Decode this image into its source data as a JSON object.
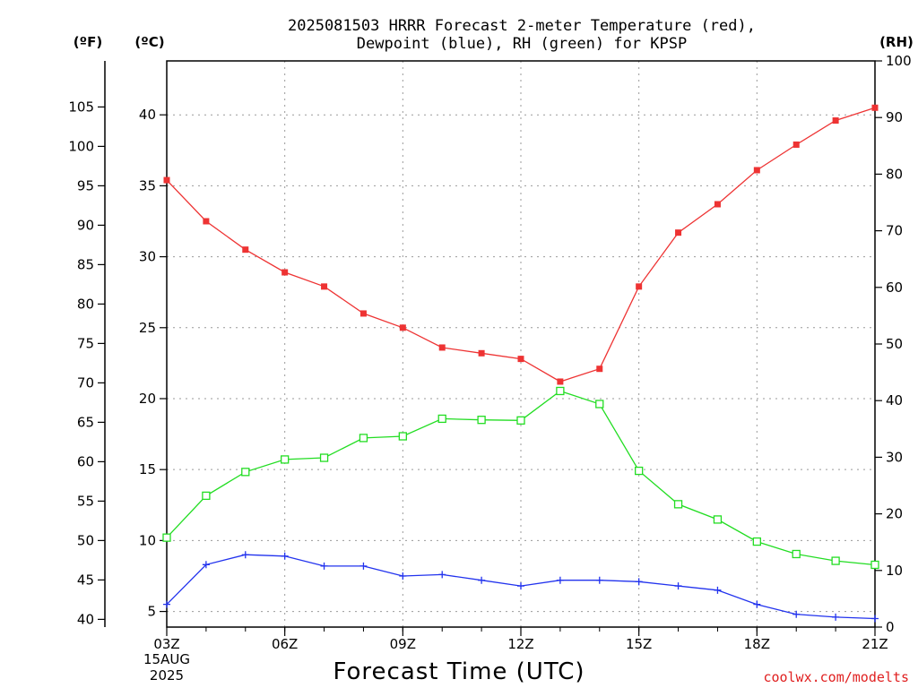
{
  "chart_data": {
    "type": "line",
    "title_lines": [
      "2025081503 HRRR Forecast 2-meter Temperature (red),",
      "Dewpoint (blue), RH (green) for KPSP"
    ],
    "units": {
      "left_outer": "(ºF)",
      "left_inner": "(ºC)",
      "right": "(RH)"
    },
    "xlabel": "Forecast Time (UTC)",
    "x": [
      "03Z",
      "04Z",
      "05Z",
      "06Z",
      "07Z",
      "08Z",
      "09Z",
      "10Z",
      "11Z",
      "12Z",
      "13Z",
      "14Z",
      "15Z",
      "16Z",
      "17Z",
      "18Z",
      "19Z",
      "20Z",
      "21Z"
    ],
    "x_ticks": [
      {
        "index": 0,
        "label": "03Z"
      },
      {
        "index": 3,
        "label": "06Z"
      },
      {
        "index": 6,
        "label": "09Z"
      },
      {
        "index": 9,
        "label": "12Z"
      },
      {
        "index": 12,
        "label": "15Z"
      },
      {
        "index": 15,
        "label": "18Z"
      },
      {
        "index": 18,
        "label": "21Z"
      }
    ],
    "x_date_lines": [
      "15AUG",
      "2025"
    ],
    "celsius_axis": {
      "ylim": [
        3.9,
        43.8
      ],
      "ticks": [
        5,
        10,
        15,
        20,
        25,
        30,
        35,
        40
      ]
    },
    "fahrenheit_axis": {
      "ticks": [
        40,
        45,
        50,
        55,
        60,
        65,
        70,
        75,
        80,
        85,
        90,
        95,
        100,
        105
      ]
    },
    "rh_axis": {
      "ylim": [
        0,
        100
      ],
      "ticks": [
        0,
        10,
        20,
        30,
        40,
        50,
        60,
        70,
        80,
        90,
        100
      ]
    },
    "grid": true,
    "series": [
      {
        "name": "Temperature",
        "color": "#ee3333",
        "marker": "filled-square",
        "axis": "celsius",
        "values": [
          35.4,
          32.5,
          30.5,
          28.9,
          27.9,
          26.0,
          25.0,
          23.6,
          23.2,
          22.8,
          21.2,
          22.1,
          27.9,
          31.7,
          33.7,
          36.1,
          37.9,
          39.6,
          40.5
        ]
      },
      {
        "name": "Dewpoint",
        "color": "#2233ee",
        "marker": "plus",
        "axis": "celsius",
        "values": [
          5.5,
          8.3,
          9.0,
          8.9,
          8.2,
          8.2,
          7.5,
          7.6,
          7.2,
          6.8,
          7.2,
          7.2,
          7.1,
          6.8,
          6.5,
          5.5,
          4.8,
          4.6,
          4.5
        ]
      },
      {
        "name": "RH",
        "color": "#22dd22",
        "marker": "open-square",
        "axis": "rh",
        "values": [
          15.8,
          23.2,
          27.4,
          29.6,
          29.9,
          33.4,
          33.7,
          36.8,
          36.6,
          36.5,
          41.7,
          39.4,
          27.6,
          21.7,
          19.0,
          15.1,
          12.9,
          11.7,
          11.0
        ]
      }
    ],
    "credit": "coolwx.com/modelts"
  }
}
